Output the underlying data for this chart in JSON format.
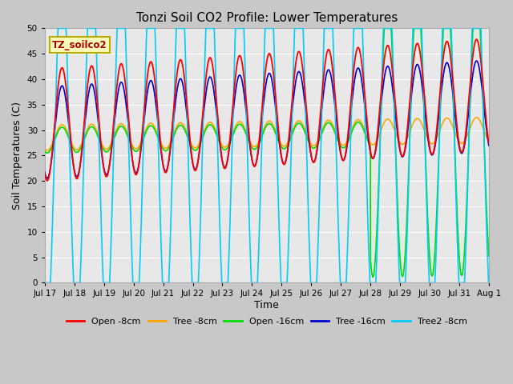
{
  "title": "Tonzi Soil CO2 Profile: Lower Temperatures",
  "ylabel": "Soil Temperatures (C)",
  "xlabel": "Time",
  "ylim": [
    0,
    50
  ],
  "yticks": [
    0,
    5,
    10,
    15,
    20,
    25,
    30,
    35,
    40,
    45,
    50
  ],
  "fig_bg_color": "#c8c8c8",
  "plot_bg_color": "#e8e8e8",
  "legend_label": "TZ_soilco2",
  "series": {
    "open8": {
      "label": "Open -8cm",
      "color": "#ff0000"
    },
    "tree8": {
      "label": "Tree -8cm",
      "color": "#ffa500"
    },
    "open16": {
      "label": "Open -16cm",
      "color": "#00dd00"
    },
    "tree16": {
      "label": "Tree -16cm",
      "color": "#0000cc"
    },
    "tree2_8": {
      "label": "Tree2 -8cm",
      "color": "#00ccff"
    }
  },
  "days": 15,
  "n_points": 3000,
  "xticklabels": [
    "Jul 17",
    "Jul 18",
    "Jul 19",
    "Jul 20",
    "Jul 21",
    "Jul 22",
    "Jul 23",
    "Jul 24",
    "Jul 25",
    "Jul 26",
    "Jul 27",
    "Jul 28",
    "Jul 29",
    "Jul 30",
    "Jul 31",
    "Aug 1"
  ]
}
